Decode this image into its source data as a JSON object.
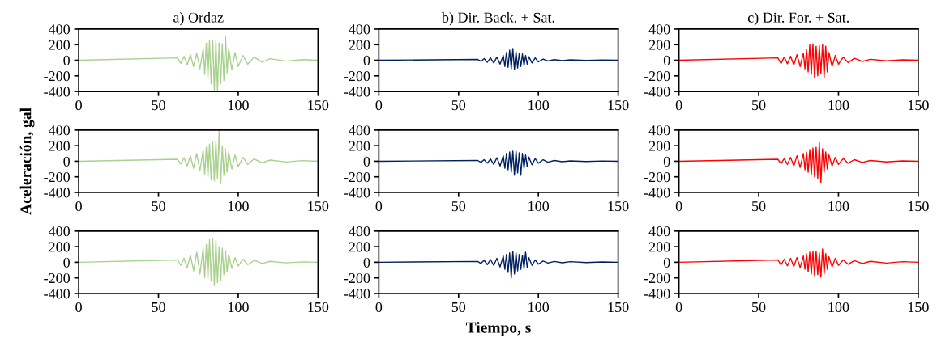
{
  "chart_data": [
    {
      "type": "line",
      "title": "a) Ordaz",
      "color": "#a9d18e",
      "xlim": [
        0,
        150
      ],
      "ylim": [
        -400,
        400
      ],
      "xticks": [
        0,
        50,
        100,
        150
      ],
      "yticks": [
        -400,
        -200,
        0,
        200,
        400
      ],
      "x": [
        0,
        62,
        64,
        66,
        68,
        70,
        72,
        74,
        76,
        78,
        79,
        80,
        81,
        82,
        83,
        84,
        85,
        86,
        87,
        88,
        89,
        90,
        91,
        92,
        93,
        94,
        96,
        98,
        100,
        103,
        106,
        110,
        115,
        120,
        130,
        140,
        150
      ],
      "values": [
        0,
        30,
        -40,
        50,
        -60,
        70,
        -80,
        90,
        -110,
        150,
        -180,
        220,
        -220,
        250,
        -300,
        260,
        -390,
        250,
        -400,
        220,
        -300,
        210,
        -260,
        310,
        -160,
        150,
        -120,
        100,
        -80,
        60,
        -50,
        40,
        -25,
        20,
        -12,
        8,
        0
      ]
    },
    {
      "type": "line",
      "title": "b) Dir. Back. + Sat.",
      "color": "#002060",
      "xlim": [
        0,
        150
      ],
      "ylim": [
        -400,
        400
      ],
      "xticks": [
        0,
        50,
        100,
        150
      ],
      "yticks": [
        -400,
        -200,
        0,
        200,
        400
      ],
      "x": [
        0,
        62,
        64,
        66,
        68,
        70,
        72,
        74,
        76,
        78,
        79,
        80,
        81,
        82,
        83,
        84,
        85,
        86,
        87,
        88,
        89,
        90,
        91,
        92,
        93,
        94,
        96,
        98,
        100,
        103,
        106,
        110,
        115,
        120,
        130,
        140,
        150
      ],
      "values": [
        0,
        10,
        -15,
        20,
        -25,
        30,
        -35,
        40,
        -50,
        60,
        -80,
        100,
        -90,
        130,
        -110,
        150,
        -120,
        110,
        -100,
        90,
        -80,
        80,
        -70,
        60,
        -50,
        45,
        -35,
        30,
        -20,
        15,
        -10,
        8,
        -5,
        5,
        -3,
        3,
        0
      ]
    },
    {
      "type": "line",
      "title": "c) Dir. For. + Sat.",
      "color": "#ff0000",
      "xlim": [
        0,
        150
      ],
      "ylim": [
        -400,
        400
      ],
      "xticks": [
        0,
        50,
        100,
        150
      ],
      "yticks": [
        -400,
        -200,
        0,
        200,
        400
      ],
      "x": [
        0,
        62,
        64,
        66,
        68,
        70,
        72,
        74,
        76,
        78,
        79,
        80,
        81,
        82,
        83,
        84,
        85,
        86,
        87,
        88,
        89,
        90,
        91,
        92,
        93,
        94,
        96,
        98,
        100,
        103,
        106,
        110,
        115,
        120,
        130,
        140,
        150
      ],
      "values": [
        0,
        30,
        -40,
        40,
        -45,
        50,
        -60,
        70,
        -80,
        90,
        -110,
        140,
        -150,
        200,
        -180,
        210,
        -220,
        180,
        -200,
        190,
        -170,
        200,
        -220,
        180,
        -150,
        100,
        -80,
        60,
        -50,
        40,
        -30,
        25,
        -15,
        12,
        -8,
        5,
        0
      ]
    },
    {
      "type": "line",
      "ylabel": "Aceleración, gal",
      "color": "#a9d18e",
      "xlim": [
        0,
        150
      ],
      "ylim": [
        -400,
        400
      ],
      "xticks": [
        0,
        50,
        100,
        150
      ],
      "yticks": [
        -400,
        -200,
        0,
        200,
        400
      ],
      "x": [
        0,
        62,
        64,
        66,
        68,
        70,
        72,
        74,
        76,
        78,
        79,
        80,
        81,
        82,
        83,
        84,
        85,
        86,
        87,
        88,
        89,
        90,
        91,
        92,
        93,
        94,
        96,
        98,
        100,
        103,
        106,
        110,
        115,
        120,
        130,
        140,
        150
      ],
      "values": [
        0,
        25,
        -35,
        45,
        -60,
        70,
        -90,
        100,
        -120,
        140,
        -170,
        180,
        -200,
        220,
        -240,
        250,
        -250,
        260,
        -220,
        400,
        -280,
        200,
        -180,
        160,
        -140,
        120,
        -100,
        80,
        -70,
        50,
        -40,
        30,
        -20,
        15,
        -10,
        8,
        0
      ]
    },
    {
      "type": "line",
      "color": "#002060",
      "xlim": [
        0,
        150
      ],
      "ylim": [
        -400,
        400
      ],
      "xticks": [
        0,
        50,
        100,
        150
      ],
      "yticks": [
        -400,
        -200,
        0,
        200,
        400
      ],
      "x": [
        0,
        62,
        64,
        66,
        68,
        70,
        72,
        74,
        76,
        78,
        79,
        80,
        81,
        82,
        83,
        84,
        85,
        86,
        87,
        88,
        89,
        90,
        91,
        92,
        93,
        94,
        96,
        98,
        100,
        103,
        106,
        110,
        115,
        120,
        130,
        140,
        150
      ],
      "values": [
        0,
        10,
        -15,
        20,
        -25,
        30,
        -40,
        45,
        -60,
        70,
        -90,
        100,
        -110,
        120,
        -140,
        130,
        -180,
        130,
        -150,
        110,
        -180,
        100,
        -90,
        80,
        -70,
        55,
        -45,
        35,
        -25,
        20,
        -12,
        10,
        -6,
        5,
        -3,
        3,
        0
      ]
    },
    {
      "type": "line",
      "color": "#ff0000",
      "xlim": [
        0,
        150
      ],
      "ylim": [
        -400,
        400
      ],
      "xticks": [
        0,
        50,
        100,
        150
      ],
      "yticks": [
        -400,
        -200,
        0,
        200,
        400
      ],
      "x": [
        0,
        62,
        64,
        66,
        68,
        70,
        72,
        74,
        76,
        78,
        79,
        80,
        81,
        82,
        83,
        84,
        85,
        86,
        87,
        88,
        89,
        90,
        91,
        92,
        93,
        94,
        96,
        98,
        100,
        103,
        106,
        110,
        115,
        120,
        130,
        140,
        150
      ],
      "values": [
        0,
        25,
        -30,
        35,
        -40,
        50,
        -60,
        70,
        -80,
        100,
        -110,
        120,
        -140,
        150,
        -170,
        170,
        -200,
        180,
        -220,
        240,
        -270,
        160,
        -140,
        120,
        -100,
        80,
        -60,
        50,
        -40,
        35,
        -25,
        20,
        -15,
        10,
        -8,
        5,
        0
      ]
    },
    {
      "type": "line",
      "color": "#a9d18e",
      "xlim": [
        0,
        150
      ],
      "ylim": [
        -400,
        400
      ],
      "xticks": [
        0,
        50,
        100,
        150
      ],
      "yticks": [
        -400,
        -200,
        0,
        200,
        400
      ],
      "x": [
        0,
        62,
        64,
        66,
        68,
        70,
        72,
        74,
        76,
        78,
        79,
        80,
        81,
        82,
        83,
        84,
        85,
        86,
        87,
        88,
        89,
        90,
        91,
        92,
        93,
        94,
        96,
        98,
        100,
        103,
        106,
        110,
        115,
        120,
        130,
        140,
        150
      ],
      "values": [
        0,
        30,
        -40,
        50,
        -70,
        90,
        -110,
        130,
        -150,
        180,
        -200,
        230,
        -210,
        290,
        -240,
        310,
        -300,
        280,
        -260,
        200,
        -230,
        180,
        -160,
        150,
        -120,
        100,
        -80,
        60,
        -50,
        40,
        -30,
        25,
        -15,
        12,
        -8,
        5,
        0
      ]
    },
    {
      "type": "line",
      "xlabel": "Tiempo, s",
      "color": "#002060",
      "xlim": [
        0,
        150
      ],
      "ylim": [
        -400,
        400
      ],
      "xticks": [
        0,
        50,
        100,
        150
      ],
      "yticks": [
        -400,
        -200,
        0,
        200,
        400
      ],
      "x": [
        0,
        62,
        64,
        66,
        68,
        70,
        72,
        74,
        76,
        78,
        79,
        80,
        81,
        82,
        83,
        84,
        85,
        86,
        87,
        88,
        89,
        90,
        91,
        92,
        93,
        94,
        96,
        98,
        100,
        103,
        106,
        110,
        115,
        120,
        130,
        140,
        150
      ],
      "values": [
        0,
        10,
        -15,
        25,
        -30,
        35,
        -40,
        50,
        -60,
        80,
        -90,
        100,
        -130,
        120,
        -200,
        140,
        -150,
        120,
        -110,
        100,
        -90,
        90,
        -80,
        130,
        -70,
        60,
        -40,
        30,
        -25,
        15,
        -10,
        10,
        -6,
        8,
        -4,
        4,
        0
      ]
    },
    {
      "type": "line",
      "color": "#ff0000",
      "xlim": [
        0,
        150
      ],
      "ylim": [
        -400,
        400
      ],
      "xticks": [
        0,
        50,
        100,
        150
      ],
      "yticks": [
        -400,
        -200,
        0,
        200,
        400
      ],
      "x": [
        0,
        62,
        64,
        66,
        68,
        70,
        72,
        74,
        76,
        78,
        79,
        80,
        81,
        82,
        83,
        84,
        85,
        86,
        87,
        88,
        89,
        90,
        91,
        92,
        93,
        94,
        96,
        98,
        100,
        103,
        106,
        110,
        115,
        120,
        130,
        140,
        150
      ],
      "values": [
        0,
        30,
        -35,
        40,
        -45,
        50,
        -55,
        60,
        -70,
        80,
        -90,
        110,
        -120,
        130,
        -150,
        140,
        -170,
        140,
        -160,
        120,
        -190,
        170,
        -150,
        110,
        -90,
        70,
        -60,
        50,
        -40,
        30,
        -25,
        20,
        -15,
        12,
        -10,
        8,
        0
      ]
    }
  ]
}
